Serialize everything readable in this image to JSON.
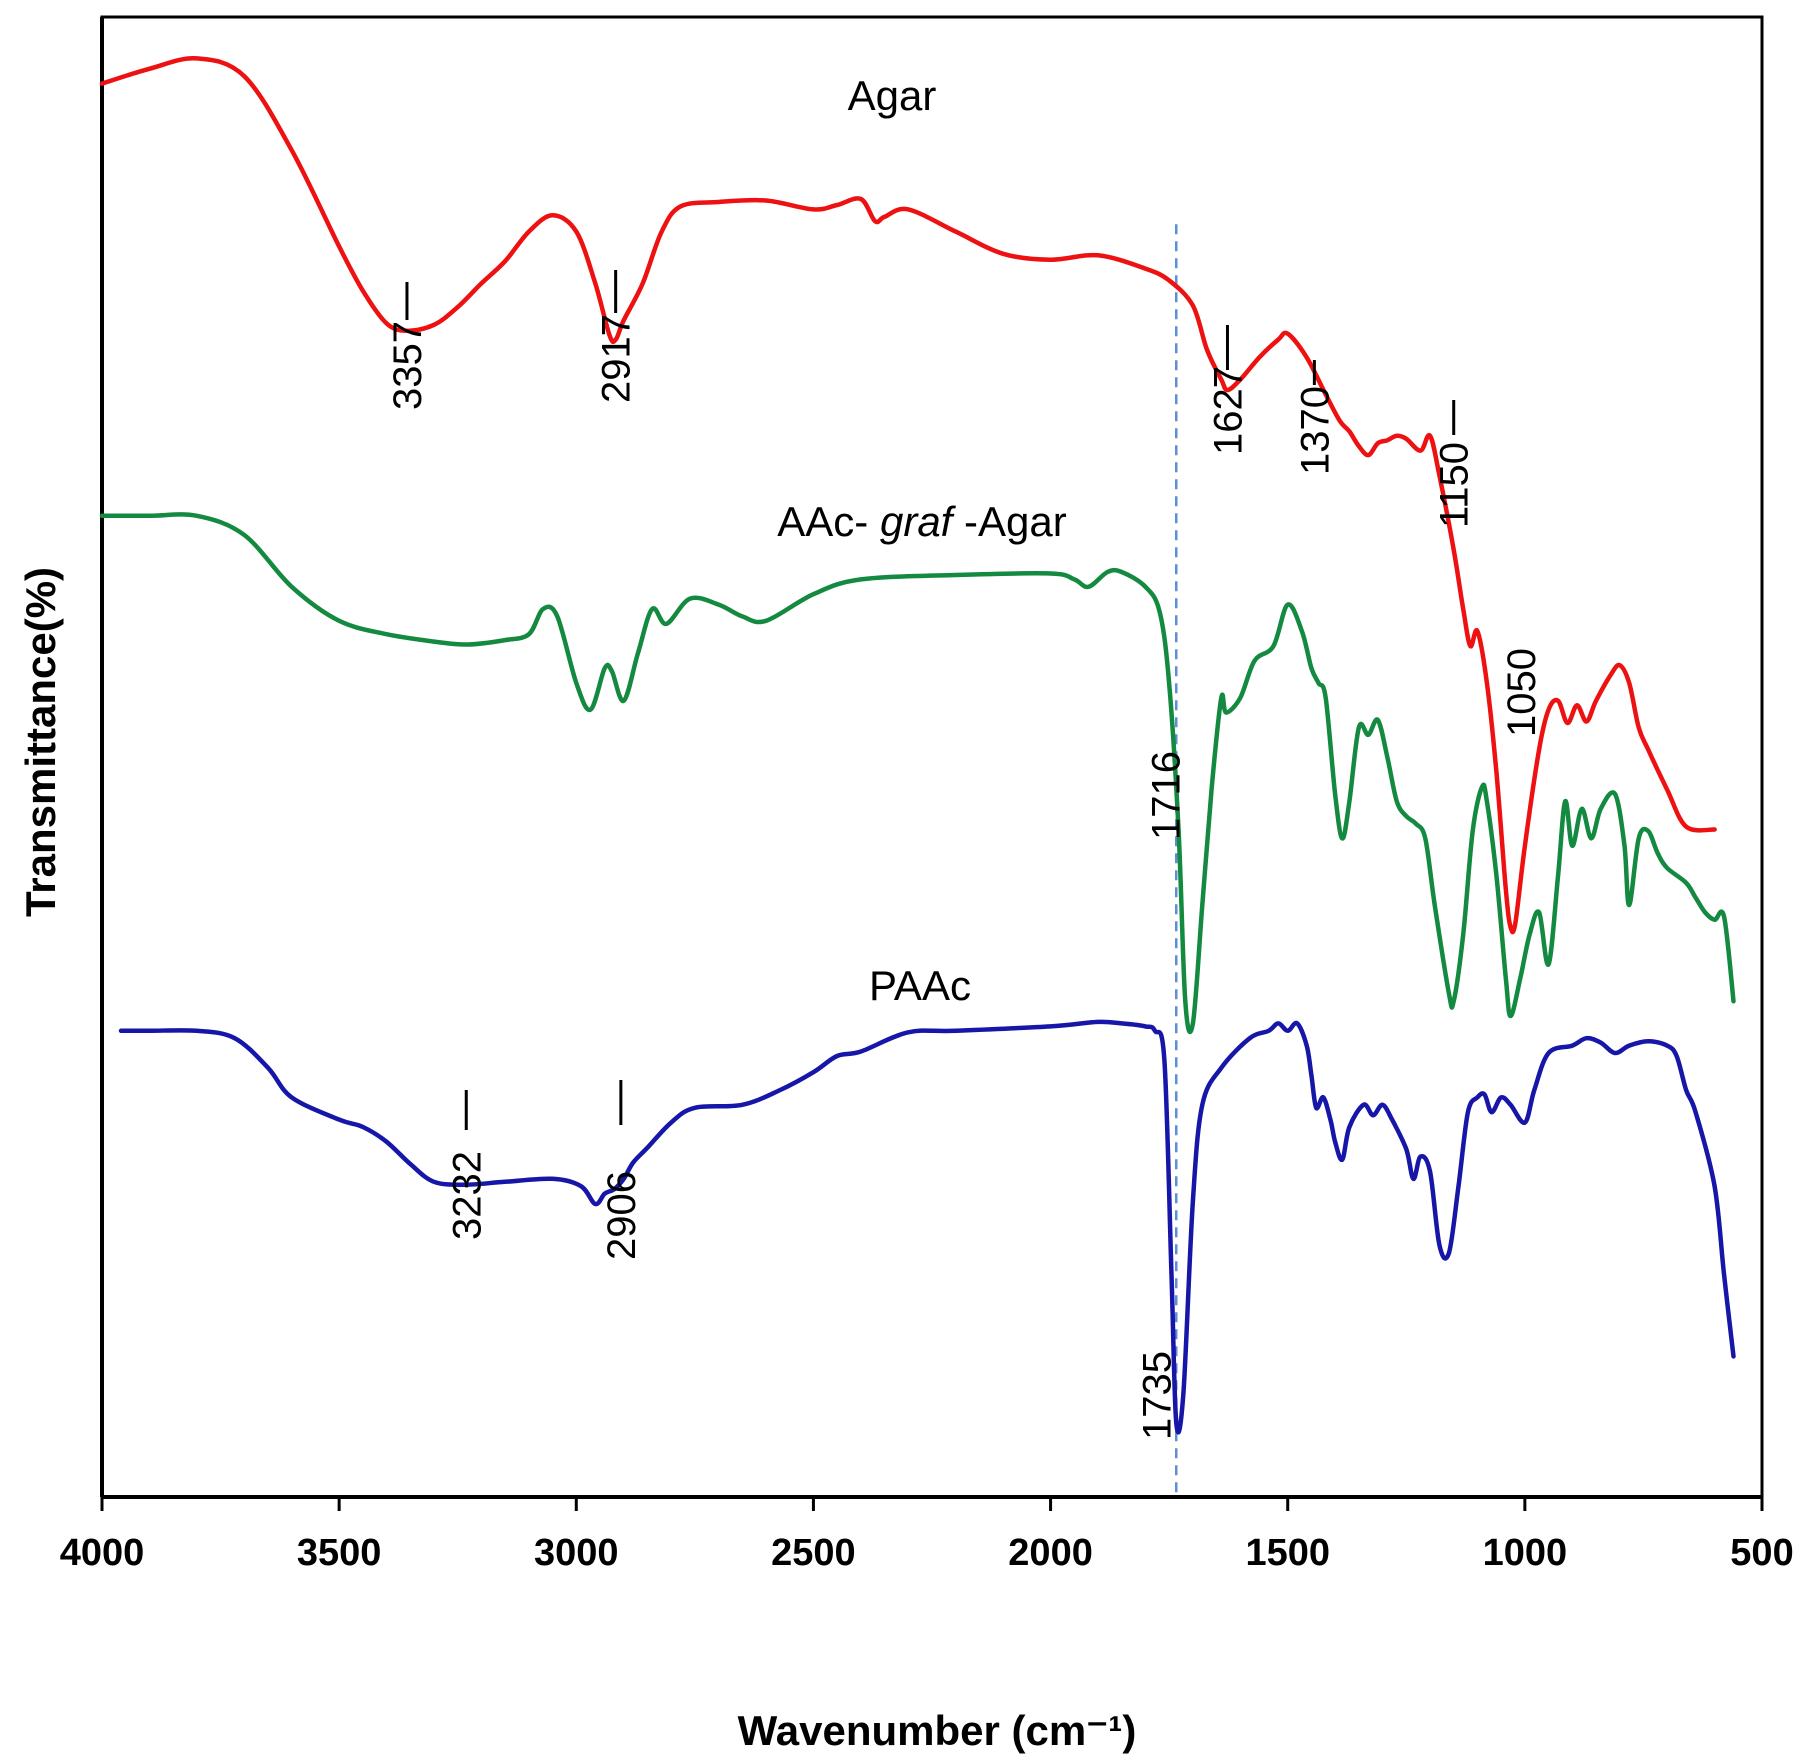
{
  "chart_data": {
    "type": "line",
    "title": "",
    "xlabel": "Wavenumber (cm⁻¹)",
    "ylabel": "Transmittance(%)",
    "xlim": [
      4000,
      500
    ],
    "x_ticks": [
      "4000",
      "3500",
      "3000",
      "2500",
      "2000",
      "1500",
      "1000",
      "500"
    ],
    "x_tick_values": [
      4000,
      3500,
      3000,
      2500,
      2000,
      1500,
      1000,
      500
    ],
    "y_ticks": [],
    "ylim": [
      0,
      100
    ],
    "grid": false,
    "reference_line": {
      "x": 1735,
      "style": "dashed",
      "color": "#5b8fd6"
    },
    "series": [
      {
        "name": "Agar",
        "label_parts": [
          "Agar"
        ],
        "color": "#ee1111",
        "points": [
          [
            4000,
            95.5
          ],
          [
            3900,
            96.5
          ],
          [
            3800,
            97.2
          ],
          [
            3700,
            96.0
          ],
          [
            3600,
            91.0
          ],
          [
            3500,
            84.5
          ],
          [
            3450,
            81.5
          ],
          [
            3400,
            79.3
          ],
          [
            3357,
            78.8
          ],
          [
            3300,
            79.2
          ],
          [
            3250,
            80.4
          ],
          [
            3200,
            82.0
          ],
          [
            3150,
            83.5
          ],
          [
            3100,
            85.5
          ],
          [
            3050,
            86.6
          ],
          [
            3000,
            85.5
          ],
          [
            2960,
            82.0
          ],
          [
            2930,
            78.5
          ],
          [
            2917,
            78.2
          ],
          [
            2900,
            79.5
          ],
          [
            2860,
            82.0
          ],
          [
            2820,
            85.5
          ],
          [
            2780,
            87.2
          ],
          [
            2700,
            87.5
          ],
          [
            2600,
            87.6
          ],
          [
            2500,
            87.0
          ],
          [
            2450,
            87.3
          ],
          [
            2400,
            87.7
          ],
          [
            2370,
            86.2
          ],
          [
            2350,
            86.5
          ],
          [
            2300,
            87.0
          ],
          [
            2200,
            85.5
          ],
          [
            2100,
            84.0
          ],
          [
            2000,
            83.6
          ],
          [
            1900,
            83.9
          ],
          [
            1800,
            83.0
          ],
          [
            1750,
            82.2
          ],
          [
            1700,
            80.5
          ],
          [
            1670,
            77.5
          ],
          [
            1640,
            75.5
          ],
          [
            1627,
            74.8
          ],
          [
            1600,
            75.5
          ],
          [
            1560,
            77.0
          ],
          [
            1520,
            78.2
          ],
          [
            1500,
            78.6
          ],
          [
            1460,
            77.0
          ],
          [
            1420,
            74.5
          ],
          [
            1390,
            72.7
          ],
          [
            1370,
            72.0
          ],
          [
            1350,
            71.0
          ],
          [
            1330,
            70.4
          ],
          [
            1310,
            71.2
          ],
          [
            1290,
            71.4
          ],
          [
            1270,
            71.7
          ],
          [
            1250,
            71.5
          ],
          [
            1220,
            70.7
          ],
          [
            1200,
            71.7
          ],
          [
            1180,
            69.0
          ],
          [
            1150,
            64.0
          ],
          [
            1130,
            60.0
          ],
          [
            1115,
            57.5
          ],
          [
            1100,
            58.5
          ],
          [
            1080,
            55.0
          ],
          [
            1060,
            49.0
          ],
          [
            1040,
            41.0
          ],
          [
            1030,
            38.5
          ],
          [
            1020,
            38.8
          ],
          [
            1000,
            44.0
          ],
          [
            970,
            50.5
          ],
          [
            950,
            53.2
          ],
          [
            930,
            53.8
          ],
          [
            910,
            52.3
          ],
          [
            890,
            53.5
          ],
          [
            870,
            52.4
          ],
          [
            850,
            53.8
          ],
          [
            820,
            55.5
          ],
          [
            800,
            56.2
          ],
          [
            780,
            55.0
          ],
          [
            760,
            52.0
          ],
          [
            740,
            50.5
          ],
          [
            700,
            47.8
          ],
          [
            660,
            45.3
          ],
          [
            600,
            45.1
          ]
        ]
      },
      {
        "name": "AAc- graf -Agar",
        "label_parts": [
          "AAc- ",
          "graf",
          " -Agar"
        ],
        "color": "#138a40",
        "points": [
          [
            4000,
            66.3
          ],
          [
            3900,
            66.3
          ],
          [
            3800,
            66.3
          ],
          [
            3700,
            65.0
          ],
          [
            3600,
            61.5
          ],
          [
            3500,
            59.2
          ],
          [
            3400,
            58.3
          ],
          [
            3300,
            57.8
          ],
          [
            3230,
            57.6
          ],
          [
            3150,
            57.9
          ],
          [
            3100,
            58.3
          ],
          [
            3070,
            60.0
          ],
          [
            3040,
            59.5
          ],
          [
            3000,
            55.0
          ],
          [
            2970,
            53.2
          ],
          [
            2940,
            56.0
          ],
          [
            2925,
            55.8
          ],
          [
            2900,
            53.8
          ],
          [
            2870,
            57.0
          ],
          [
            2840,
            60.0
          ],
          [
            2810,
            59.0
          ],
          [
            2760,
            60.7
          ],
          [
            2700,
            60.3
          ],
          [
            2650,
            59.5
          ],
          [
            2600,
            59.2
          ],
          [
            2500,
            61.0
          ],
          [
            2400,
            62.0
          ],
          [
            2200,
            62.3
          ],
          [
            2000,
            62.4
          ],
          [
            1950,
            62.0
          ],
          [
            1920,
            61.5
          ],
          [
            1880,
            62.5
          ],
          [
            1850,
            62.5
          ],
          [
            1800,
            61.5
          ],
          [
            1770,
            59.8
          ],
          [
            1750,
            55.0
          ],
          [
            1730,
            45.0
          ],
          [
            1716,
            33.5
          ],
          [
            1700,
            32.0
          ],
          [
            1680,
            40.0
          ],
          [
            1660,
            48.0
          ],
          [
            1640,
            54.0
          ],
          [
            1630,
            53.0
          ],
          [
            1600,
            54.0
          ],
          [
            1570,
            56.5
          ],
          [
            1530,
            57.5
          ],
          [
            1500,
            60.3
          ],
          [
            1470,
            58.5
          ],
          [
            1450,
            56.0
          ],
          [
            1435,
            55.0
          ],
          [
            1420,
            54.0
          ],
          [
            1400,
            47.5
          ],
          [
            1385,
            44.5
          ],
          [
            1370,
            47.0
          ],
          [
            1350,
            52.0
          ],
          [
            1330,
            51.5
          ],
          [
            1310,
            52.5
          ],
          [
            1290,
            50.0
          ],
          [
            1270,
            47.0
          ],
          [
            1250,
            46.0
          ],
          [
            1230,
            45.5
          ],
          [
            1210,
            44.5
          ],
          [
            1190,
            40.0
          ],
          [
            1160,
            34.0
          ],
          [
            1150,
            33.5
          ],
          [
            1130,
            38.0
          ],
          [
            1110,
            45.0
          ],
          [
            1090,
            48.0
          ],
          [
            1080,
            47.0
          ],
          [
            1060,
            42.0
          ],
          [
            1040,
            35.0
          ],
          [
            1030,
            32.5
          ],
          [
            1010,
            35.0
          ],
          [
            990,
            38.0
          ],
          [
            970,
            39.5
          ],
          [
            950,
            36.0
          ],
          [
            930,
            42.0
          ],
          [
            915,
            47.0
          ],
          [
            900,
            44.0
          ],
          [
            880,
            46.5
          ],
          [
            860,
            44.5
          ],
          [
            840,
            46.5
          ],
          [
            810,
            47.5
          ],
          [
            790,
            44.0
          ],
          [
            780,
            40.0
          ],
          [
            760,
            44.5
          ],
          [
            740,
            45.0
          ],
          [
            720,
            43.5
          ],
          [
            700,
            42.5
          ],
          [
            660,
            41.5
          ],
          [
            640,
            40.5
          ],
          [
            620,
            39.5
          ],
          [
            600,
            39.0
          ],
          [
            580,
            39.2
          ],
          [
            560,
            33.5
          ]
        ]
      },
      {
        "name": "PAAc",
        "label_parts": [
          "PAAc"
        ],
        "color": "#1616a8",
        "points": [
          [
            3960,
            31.5
          ],
          [
            3900,
            31.5
          ],
          [
            3800,
            31.5
          ],
          [
            3720,
            31.0
          ],
          [
            3650,
            29.0
          ],
          [
            3600,
            27.0
          ],
          [
            3500,
            25.5
          ],
          [
            3450,
            25.0
          ],
          [
            3400,
            24.0
          ],
          [
            3350,
            22.5
          ],
          [
            3300,
            21.3
          ],
          [
            3232,
            21.1
          ],
          [
            3150,
            21.3
          ],
          [
            3050,
            21.5
          ],
          [
            2990,
            21.0
          ],
          [
            2960,
            19.8
          ],
          [
            2940,
            20.5
          ],
          [
            2920,
            20.8
          ],
          [
            2900,
            21.5
          ],
          [
            2880,
            22.6
          ],
          [
            2850,
            23.6
          ],
          [
            2800,
            25.3
          ],
          [
            2750,
            26.3
          ],
          [
            2650,
            26.5
          ],
          [
            2570,
            27.5
          ],
          [
            2500,
            28.7
          ],
          [
            2450,
            29.8
          ],
          [
            2400,
            30.1
          ],
          [
            2300,
            31.4
          ],
          [
            2200,
            31.5
          ],
          [
            2000,
            31.8
          ],
          [
            1900,
            32.1
          ],
          [
            1850,
            32.0
          ],
          [
            1800,
            31.8
          ],
          [
            1780,
            31.5
          ],
          [
            1760,
            29.5
          ],
          [
            1745,
            15.0
          ],
          [
            1735,
            5.0
          ],
          [
            1720,
            7.0
          ],
          [
            1700,
            20.0
          ],
          [
            1680,
            26.5
          ],
          [
            1640,
            29.0
          ],
          [
            1580,
            31.0
          ],
          [
            1540,
            31.5
          ],
          [
            1520,
            32.0
          ],
          [
            1500,
            31.5
          ],
          [
            1480,
            32.0
          ],
          [
            1460,
            30.5
          ],
          [
            1450,
            28.5
          ],
          [
            1440,
            26.3
          ],
          [
            1425,
            27.0
          ],
          [
            1410,
            25.5
          ],
          [
            1400,
            24.0
          ],
          [
            1385,
            22.8
          ],
          [
            1370,
            25.0
          ],
          [
            1340,
            26.5
          ],
          [
            1320,
            25.8
          ],
          [
            1300,
            26.5
          ],
          [
            1280,
            25.5
          ],
          [
            1250,
            23.5
          ],
          [
            1235,
            21.5
          ],
          [
            1220,
            23.0
          ],
          [
            1200,
            22.0
          ],
          [
            1180,
            17.0
          ],
          [
            1160,
            16.5
          ],
          [
            1140,
            21.0
          ],
          [
            1120,
            26.0
          ],
          [
            1100,
            27.0
          ],
          [
            1085,
            27.2
          ],
          [
            1070,
            26.0
          ],
          [
            1050,
            27.0
          ],
          [
            1030,
            26.5
          ],
          [
            1000,
            25.3
          ],
          [
            980,
            27.5
          ],
          [
            950,
            30.0
          ],
          [
            900,
            30.5
          ],
          [
            870,
            31.0
          ],
          [
            840,
            30.7
          ],
          [
            810,
            30.0
          ],
          [
            780,
            30.5
          ],
          [
            740,
            30.8
          ],
          [
            700,
            30.5
          ],
          [
            680,
            29.8
          ],
          [
            660,
            27.5
          ],
          [
            640,
            26.0
          ],
          [
            600,
            21.0
          ],
          [
            580,
            15.0
          ],
          [
            560,
            9.5
          ]
        ]
      }
    ],
    "peak_annotations": [
      {
        "series": "Agar",
        "label": "3357",
        "x": 3357
      },
      {
        "series": "Agar",
        "label": "2917",
        "x": 2917
      },
      {
        "series": "Agar",
        "label": "1627",
        "x": 1627
      },
      {
        "series": "Agar",
        "label": "1370",
        "x": 1370
      },
      {
        "series": "Agar",
        "label": "1150",
        "x": 1150
      },
      {
        "series": "Agar",
        "label": "1050",
        "x": 1050
      },
      {
        "series": "AAc- graf -Agar",
        "label": "1716",
        "x": 1716
      },
      {
        "series": "PAAc",
        "label": "3232",
        "x": 3232
      },
      {
        "series": "PAAc",
        "label": "2906",
        "x": 2906
      },
      {
        "series": "PAAc",
        "label": "1735",
        "x": 1735
      }
    ]
  }
}
